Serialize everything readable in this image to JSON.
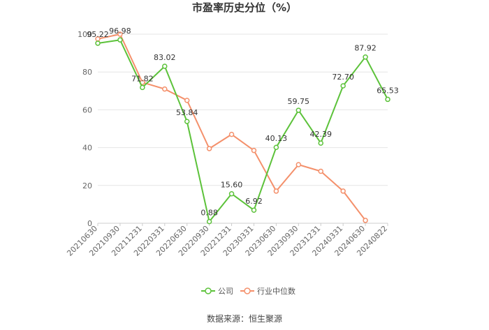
{
  "chart_data": {
    "type": "line",
    "title": "市盈率历史分位（%）",
    "categories": [
      "20210630",
      "20210930",
      "20211231",
      "20220331",
      "20220630",
      "20220930",
      "20221231",
      "20230331",
      "20230630",
      "20230930",
      "20231231",
      "20240331",
      "20240630",
      "20240822"
    ],
    "ylim": [
      0,
      100
    ],
    "yticks": [
      0,
      20,
      40,
      60,
      80,
      100
    ],
    "grid": true,
    "legend_position": "bottom",
    "series": [
      {
        "name": "公司",
        "color": "#5CC23A",
        "values": [
          95.22,
          96.98,
          71.82,
          83.02,
          53.84,
          0.88,
          15.6,
          6.92,
          40.13,
          59.75,
          42.39,
          72.7,
          87.92,
          65.53
        ],
        "labels": [
          "95.22",
          "96.98",
          "71.82",
          "83.02",
          "53.84",
          "0.88",
          "15.60",
          "6.92",
          "40.13",
          "59.75",
          "42.39",
          "72.70",
          "87.92",
          "65.53"
        ]
      },
      {
        "name": "行业中位数",
        "color": "#F4906B",
        "values": [
          97.5,
          100,
          74.5,
          71,
          65,
          39.5,
          47,
          38.5,
          17,
          31,
          27.5,
          17,
          1.5,
          null
        ]
      }
    ],
    "source": "数据来源：恒生聚源"
  }
}
